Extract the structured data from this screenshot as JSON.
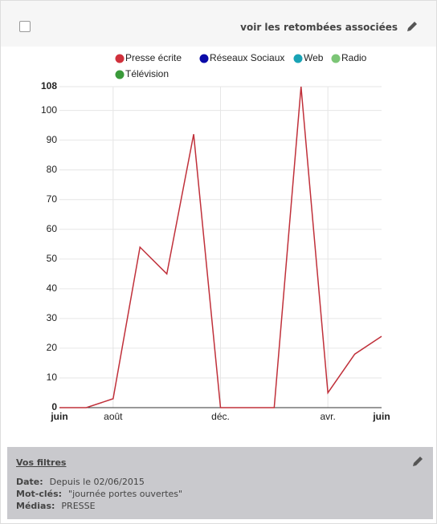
{
  "header": {
    "link": "voir les retombées associées"
  },
  "chart_data": {
    "type": "line",
    "legend": [
      {
        "name": "Presse écrite",
        "color": "#d0313c"
      },
      {
        "name": "Réseaux Sociaux",
        "color": "#0a0aa8"
      },
      {
        "name": "Web",
        "color": "#1aa3b5"
      },
      {
        "name": "Radio",
        "color": "#7cc576"
      },
      {
        "name": "Télévision",
        "color": "#3a9a3a"
      }
    ],
    "categories": [
      "juin",
      null,
      "août",
      null,
      null,
      null,
      "déc.",
      null,
      null,
      null,
      "avr.",
      null,
      "juin"
    ],
    "series": [
      {
        "name": "Presse écrite",
        "color": "#c0303a",
        "values": [
          0,
          0,
          3,
          54,
          45,
          92,
          0,
          0,
          0,
          108,
          5,
          18,
          24
        ]
      }
    ],
    "ylim": [
      0,
      108
    ],
    "yticks": [
      0,
      10,
      20,
      30,
      40,
      50,
      60,
      70,
      80,
      90,
      100,
      108
    ],
    "grid": true
  },
  "filters": {
    "title": "Vos filtres",
    "items": [
      {
        "label": "Date:",
        "value": "Depuis le 02/06/2015"
      },
      {
        "label": "Mot-clés:",
        "value": "\"journée portes ouvertes\""
      },
      {
        "label": "Médias:",
        "value": "PRESSE"
      }
    ]
  }
}
